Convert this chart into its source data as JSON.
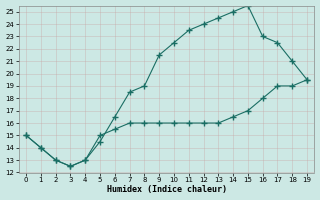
{
  "xlabel": "Humidex (Indice chaleur)",
  "bg_color": "#cce8e4",
  "grid_color": "#b0d8d4",
  "line_color": "#1a6e64",
  "upper_x": [
    0,
    1,
    2,
    3,
    4,
    5,
    6,
    7,
    8,
    9,
    10,
    11,
    12,
    13,
    14,
    15,
    16,
    17,
    18,
    19
  ],
  "upper_y": [
    15,
    14,
    13,
    12.5,
    13,
    14.5,
    16.5,
    18.5,
    19,
    21.5,
    22.5,
    23.5,
    24,
    24.5,
    25,
    25.5,
    23,
    22.5,
    21,
    19.5
  ],
  "lower_x": [
    0,
    1,
    2,
    3,
    4,
    5,
    6,
    7,
    8,
    9,
    10,
    11,
    12,
    13,
    14,
    15,
    16,
    17,
    18,
    19
  ],
  "lower_y": [
    15,
    14,
    13,
    12.5,
    13,
    15,
    15.5,
    16,
    16,
    16,
    16,
    16,
    16,
    16,
    16.5,
    17,
    18,
    19,
    19,
    19.5
  ],
  "xlim": [
    0,
    19
  ],
  "ylim": [
    12,
    25.5
  ],
  "xticks": [
    0,
    1,
    2,
    3,
    4,
    5,
    6,
    7,
    8,
    9,
    10,
    11,
    12,
    13,
    14,
    15,
    16,
    17,
    18,
    19
  ],
  "yticks": [
    12,
    13,
    14,
    15,
    16,
    17,
    18,
    19,
    20,
    21,
    22,
    23,
    24,
    25
  ]
}
